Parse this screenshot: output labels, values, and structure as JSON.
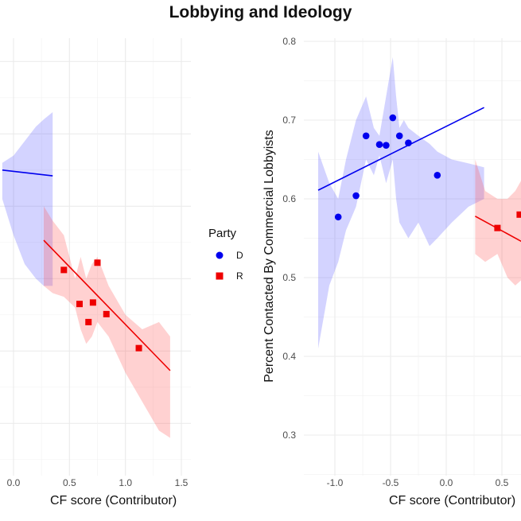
{
  "title": "Lobbying and Ideology",
  "legend": {
    "title": "Party",
    "items": [
      {
        "label": "D",
        "color": "#0000ee",
        "shape": "circle"
      },
      {
        "label": "R",
        "color": "#ee0000",
        "shape": "square"
      }
    ]
  },
  "chart_data": [
    {
      "type": "scatter",
      "xlabel": "CF score (Contributor)",
      "ylabel": "",
      "x_ticks": [
        "0.0",
        "0.5",
        "1.0",
        "1.5"
      ],
      "x_tick_values": [
        0.0,
        0.5,
        1.0,
        1.5
      ],
      "y_gridlines": [
        0.8,
        0.7,
        0.6,
        0.5,
        0.4,
        0.3
      ],
      "xlim": [
        -0.1,
        1.55
      ],
      "ylim": [
        0.23,
        0.83
      ],
      "grid": true,
      "series": [
        {
          "name": "D",
          "color": "#0000ee",
          "points": [],
          "fit": {
            "x": [
              -0.1,
              0.35
            ],
            "y": [
              0.65,
              0.642
            ]
          },
          "band": {
            "x": [
              -0.1,
              0.0,
              0.1,
              0.2,
              0.27,
              0.35
            ],
            "lower": [
              0.61,
              0.56,
              0.52,
              0.5,
              0.49,
              0.49
            ],
            "upper": [
              0.66,
              0.67,
              0.69,
              0.71,
              0.72,
              0.73
            ]
          }
        },
        {
          "name": "R",
          "color": "#ee0000",
          "points": [
            {
              "x": 0.45,
              "y": 0.512
            },
            {
              "x": 0.59,
              "y": 0.465
            },
            {
              "x": 0.67,
              "y": 0.44
            },
            {
              "x": 0.71,
              "y": 0.467
            },
            {
              "x": 0.75,
              "y": 0.522
            },
            {
              "x": 0.83,
              "y": 0.451
            },
            {
              "x": 1.12,
              "y": 0.404
            }
          ],
          "fit": {
            "x": [
              0.27,
              1.4
            ],
            "y": [
              0.553,
              0.373
            ]
          },
          "band": {
            "x": [
              0.27,
              0.35,
              0.45,
              0.55,
              0.6,
              0.65,
              0.7,
              0.75,
              0.85,
              1.0,
              1.15,
              1.3,
              1.4
            ],
            "lower": [
              0.49,
              0.48,
              0.475,
              0.46,
              0.43,
              0.41,
              0.42,
              0.44,
              0.42,
              0.37,
              0.33,
              0.29,
              0.28
            ],
            "upper": [
              0.6,
              0.58,
              0.56,
              0.5,
              0.53,
              0.5,
              0.52,
              0.53,
              0.49,
              0.45,
              0.43,
              0.44,
              0.42
            ]
          }
        }
      ]
    },
    {
      "type": "scatter",
      "xlabel": "CF score (Contributor)",
      "ylabel": "Percent Contacted By Commercial Lobbyists",
      "x_ticks": [
        "-1.0",
        "-0.5",
        "0.0",
        "0.5"
      ],
      "x_tick_values": [
        -1.0,
        -0.5,
        0.0,
        0.5
      ],
      "y_ticks": [
        "0.8",
        "0.7",
        "0.6",
        "0.5",
        "0.4",
        "0.3"
      ],
      "y_tick_values": [
        0.8,
        0.7,
        0.6,
        0.5,
        0.4,
        0.3
      ],
      "xlim": [
        -1.25,
        0.7
      ],
      "ylim": [
        0.25,
        0.81
      ],
      "grid": true,
      "series": [
        {
          "name": "D",
          "color": "#0000ee",
          "points": [
            {
              "x": -0.97,
              "y": 0.577
            },
            {
              "x": -0.81,
              "y": 0.604
            },
            {
              "x": -0.72,
              "y": 0.68
            },
            {
              "x": -0.6,
              "y": 0.669
            },
            {
              "x": -0.54,
              "y": 0.668
            },
            {
              "x": -0.48,
              "y": 0.703
            },
            {
              "x": -0.42,
              "y": 0.68
            },
            {
              "x": -0.34,
              "y": 0.671
            },
            {
              "x": -0.08,
              "y": 0.63
            }
          ],
          "fit": {
            "x": [
              -1.15,
              0.34
            ],
            "y": [
              0.611,
              0.716
            ]
          },
          "band": {
            "x": [
              -1.15,
              -1.05,
              -0.97,
              -0.9,
              -0.81,
              -0.72,
              -0.65,
              -0.6,
              -0.54,
              -0.48,
              -0.45,
              -0.42,
              -0.38,
              -0.34,
              -0.25,
              -0.15,
              -0.08,
              0.05,
              0.2,
              0.34
            ],
            "lower": [
              0.41,
              0.49,
              0.52,
              0.56,
              0.59,
              0.65,
              0.63,
              0.655,
              0.62,
              0.65,
              0.6,
              0.57,
              0.56,
              0.55,
              0.57,
              0.54,
              0.55,
              0.57,
              0.59,
              0.6
            ],
            "upper": [
              0.66,
              0.62,
              0.6,
              0.65,
              0.7,
              0.73,
              0.69,
              0.68,
              0.73,
              0.78,
              0.73,
              0.69,
              0.7,
              0.69,
              0.68,
              0.67,
              0.66,
              0.65,
              0.645,
              0.64
            ]
          }
        },
        {
          "name": "R",
          "color": "#ee0000",
          "points": [
            {
              "x": 0.46,
              "y": 0.563
            },
            {
              "x": 0.66,
              "y": 0.58
            }
          ],
          "fit": {
            "x": [
              0.26,
              0.7
            ],
            "y": [
              0.578,
              0.544
            ]
          },
          "band": {
            "x": [
              0.26,
              0.35,
              0.46,
              0.55,
              0.62,
              0.7
            ],
            "lower": [
              0.53,
              0.52,
              0.53,
              0.5,
              0.49,
              0.5
            ],
            "upper": [
              0.65,
              0.61,
              0.6,
              0.6,
              0.61,
              0.63
            ]
          }
        }
      ]
    }
  ]
}
